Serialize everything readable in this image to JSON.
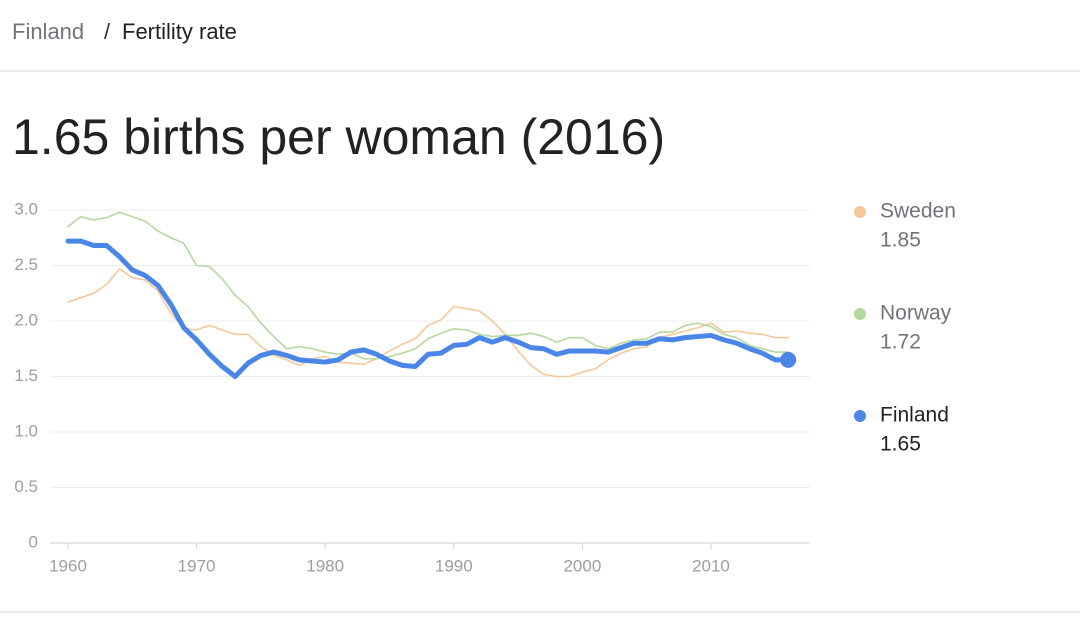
{
  "breadcrumb": {
    "items": [
      "Finland",
      "Fertility rate"
    ],
    "separator": "/"
  },
  "chart_data": {
    "type": "line",
    "title": "1.65 births per woman (2016)",
    "x": [
      1960,
      1961,
      1962,
      1963,
      1964,
      1965,
      1966,
      1967,
      1968,
      1969,
      1970,
      1971,
      1972,
      1973,
      1974,
      1975,
      1976,
      1977,
      1978,
      1979,
      1980,
      1981,
      1982,
      1983,
      1984,
      1985,
      1986,
      1987,
      1988,
      1989,
      1990,
      1991,
      1992,
      1993,
      1994,
      1995,
      1996,
      1997,
      1998,
      1999,
      2000,
      2001,
      2002,
      2003,
      2004,
      2005,
      2006,
      2007,
      2008,
      2009,
      2010,
      2011,
      2012,
      2013,
      2014,
      2015,
      2016
    ],
    "series": [
      {
        "name": "Sweden",
        "color": "#f5c89a",
        "values": [
          2.17,
          2.21,
          2.25,
          2.33,
          2.47,
          2.39,
          2.37,
          2.27,
          2.07,
          1.93,
          1.92,
          1.96,
          1.92,
          1.88,
          1.88,
          1.77,
          1.69,
          1.65,
          1.6,
          1.66,
          1.68,
          1.63,
          1.62,
          1.61,
          1.66,
          1.73,
          1.79,
          1.84,
          1.96,
          2.01,
          2.13,
          2.11,
          2.09,
          2.0,
          1.88,
          1.73,
          1.6,
          1.52,
          1.5,
          1.5,
          1.54,
          1.57,
          1.65,
          1.71,
          1.75,
          1.77,
          1.85,
          1.88,
          1.91,
          1.94,
          1.98,
          1.9,
          1.91,
          1.89,
          1.88,
          1.85,
          1.85
        ]
      },
      {
        "name": "Norway",
        "color": "#b3d9a0",
        "values": [
          2.85,
          2.94,
          2.91,
          2.93,
          2.98,
          2.94,
          2.9,
          2.81,
          2.75,
          2.7,
          2.5,
          2.49,
          2.38,
          2.23,
          2.13,
          1.98,
          1.86,
          1.75,
          1.77,
          1.75,
          1.72,
          1.7,
          1.71,
          1.66,
          1.66,
          1.68,
          1.71,
          1.75,
          1.84,
          1.89,
          1.93,
          1.92,
          1.88,
          1.86,
          1.87,
          1.87,
          1.89,
          1.86,
          1.81,
          1.85,
          1.85,
          1.78,
          1.75,
          1.8,
          1.83,
          1.84,
          1.9,
          1.9,
          1.96,
          1.98,
          1.95,
          1.88,
          1.85,
          1.78,
          1.75,
          1.72,
          1.72
        ]
      },
      {
        "name": "Finland",
        "color": "#4a86e8",
        "values": [
          2.72,
          2.72,
          2.68,
          2.68,
          2.58,
          2.46,
          2.41,
          2.32,
          2.15,
          1.94,
          1.83,
          1.7,
          1.59,
          1.5,
          1.62,
          1.69,
          1.72,
          1.69,
          1.65,
          1.64,
          1.63,
          1.65,
          1.72,
          1.74,
          1.7,
          1.64,
          1.6,
          1.59,
          1.7,
          1.71,
          1.78,
          1.79,
          1.85,
          1.81,
          1.85,
          1.81,
          1.76,
          1.75,
          1.7,
          1.73,
          1.73,
          1.73,
          1.72,
          1.76,
          1.8,
          1.8,
          1.84,
          1.83,
          1.85,
          1.86,
          1.87,
          1.83,
          1.8,
          1.75,
          1.71,
          1.65,
          1.65
        ]
      }
    ],
    "xlim": [
      1958.6,
      2017.7
    ],
    "xticks": [
      1960,
      1970,
      1980,
      1990,
      2000,
      2010
    ],
    "ylim": [
      0,
      3
    ],
    "yticks": [
      0,
      {
        "value": 0.5,
        "label": "0.5"
      },
      {
        "value": 1,
        "label": "1.0"
      },
      {
        "value": 1.5,
        "label": "1.5"
      },
      {
        "value": 2,
        "label": "2.0"
      },
      {
        "value": 2.5,
        "label": "2.5"
      },
      {
        "value": 3,
        "label": "3.0"
      }
    ],
    "grid": true
  }
}
